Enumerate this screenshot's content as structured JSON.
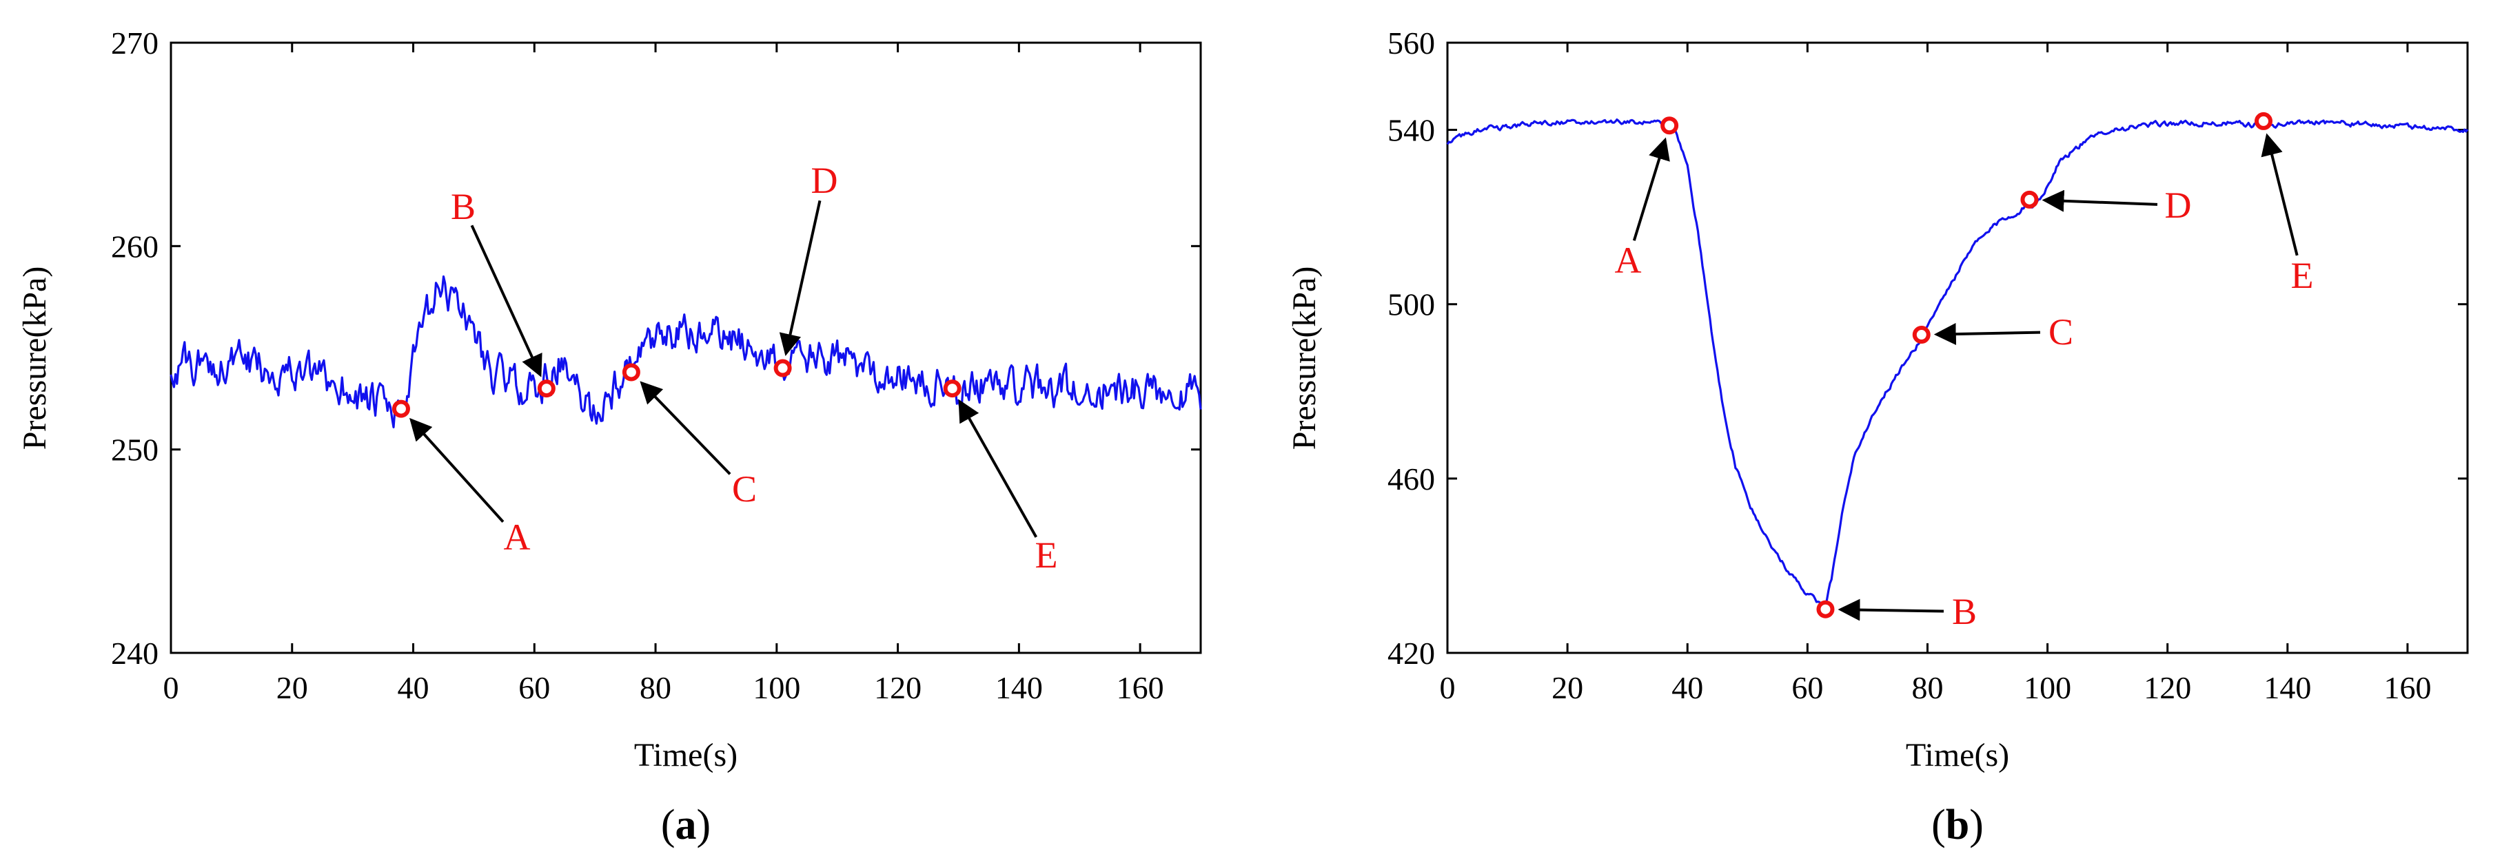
{
  "colors": {
    "series": "#1111ee",
    "annotation": "#ee1111",
    "arrow": "#000000",
    "axis": "#000000"
  },
  "chart_data": [
    {
      "id": "a",
      "type": "line",
      "panel_prefix": "(",
      "panel_letter": "a",
      "panel_suffix": ")",
      "xlabel": "Time(s)",
      "ylabel": "Pressure(kPa)",
      "xlim": [
        0,
        170
      ],
      "ylim": [
        240,
        270
      ],
      "xticks": [
        0,
        20,
        40,
        60,
        80,
        100,
        120,
        140,
        160
      ],
      "yticks": [
        240,
        250,
        260,
        270
      ],
      "series": [
        {
          "name": "pressure",
          "noise": 1.4,
          "points": [
            [
              0,
              254
            ],
            [
              10,
              254.3
            ],
            [
              20,
              253.8
            ],
            [
              28,
              253.2
            ],
            [
              33,
              252.3
            ],
            [
              37,
              251.8
            ],
            [
              39,
              252.5
            ],
            [
              41,
              255.5
            ],
            [
              44,
              257.8
            ],
            [
              47,
              257.6
            ],
            [
              50,
              255.8
            ],
            [
              53,
              253.8
            ],
            [
              57,
              253.2
            ],
            [
              61,
              253
            ],
            [
              64,
              254.3
            ],
            [
              67,
              252.8
            ],
            [
              70,
              251.8
            ],
            [
              73,
              253
            ],
            [
              76,
              254
            ],
            [
              80,
              255.2
            ],
            [
              84,
              255.7
            ],
            [
              90,
              255.6
            ],
            [
              96,
              255.1
            ],
            [
              101,
              254.1
            ],
            [
              106,
              254.5
            ],
            [
              112,
              254.3
            ],
            [
              118,
              253.8
            ],
            [
              124,
              253.2
            ],
            [
              129,
              253
            ],
            [
              136,
              253.3
            ],
            [
              145,
              253
            ],
            [
              155,
              252.9
            ],
            [
              165,
              253
            ],
            [
              170,
              252.7
            ]
          ]
        }
      ],
      "markers": [
        {
          "label": "A",
          "x": 38,
          "y": 252
        },
        {
          "label": "B",
          "x": 62,
          "y": 253
        },
        {
          "label": "C",
          "x": 76,
          "y": 253.8
        },
        {
          "label": "D",
          "x": 101,
          "y": 254
        },
        {
          "label": "E",
          "x": 129,
          "y": 253
        }
      ]
    },
    {
      "id": "b",
      "type": "line",
      "panel_prefix": "(",
      "panel_letter": "b",
      "panel_suffix": ")",
      "xlabel": "Time(s)",
      "ylabel": "Pressure(kPa)",
      "xlim": [
        0,
        170
      ],
      "ylim": [
        420,
        560
      ],
      "xticks": [
        0,
        20,
        40,
        60,
        80,
        100,
        120,
        140,
        160
      ],
      "yticks": [
        420,
        460,
        500,
        540,
        560
      ],
      "series": [
        {
          "name": "pressure",
          "noise": 0.9,
          "points": [
            [
              0,
              537
            ],
            [
              5,
              540
            ],
            [
              15,
              541.5
            ],
            [
              25,
              542
            ],
            [
              35,
              541.5
            ],
            [
              38,
              540
            ],
            [
              40,
              532
            ],
            [
              42,
              514
            ],
            [
              44,
              494
            ],
            [
              46,
              476
            ],
            [
              48,
              463
            ],
            [
              51,
              452
            ],
            [
              55,
              442
            ],
            [
              59,
              435
            ],
            [
              62,
              431
            ],
            [
              63,
              430.5
            ],
            [
              64,
              437
            ],
            [
              66,
              454
            ],
            [
              68,
              466
            ],
            [
              71,
              475
            ],
            [
              75,
              484
            ],
            [
              78,
              490
            ],
            [
              80,
              495
            ],
            [
              84,
              505
            ],
            [
              88,
              514
            ],
            [
              92,
              519
            ],
            [
              96,
              522
            ],
            [
              98,
              523
            ],
            [
              100,
              527
            ],
            [
              102,
              533
            ],
            [
              106,
              537
            ],
            [
              110,
              540
            ],
            [
              120,
              541.5
            ],
            [
              130,
              541.5
            ],
            [
              136,
              541
            ],
            [
              145,
              542
            ],
            [
              155,
              541
            ],
            [
              165,
              540.5
            ],
            [
              170,
              540
            ]
          ]
        }
      ],
      "markers": [
        {
          "label": "A",
          "x": 37,
          "y": 541
        },
        {
          "label": "B",
          "x": 63,
          "y": 430
        },
        {
          "label": "C",
          "x": 79,
          "y": 493
        },
        {
          "label": "D",
          "x": 97,
          "y": 524
        },
        {
          "label": "E",
          "x": 136,
          "y": 542
        }
      ]
    }
  ]
}
